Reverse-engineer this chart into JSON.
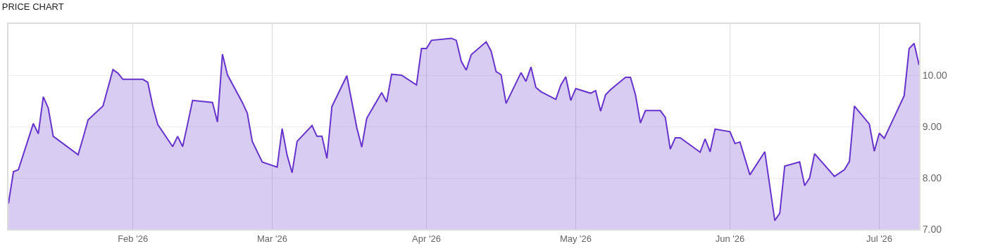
{
  "chart_data": {
    "type": "area",
    "title": "PRICE CHART",
    "x": [
      "2026-01-07",
      "2026-01-08",
      "2026-01-09",
      "2026-01-12",
      "2026-01-13",
      "2026-01-14",
      "2026-01-15",
      "2026-01-16",
      "2026-01-21",
      "2026-01-22",
      "2026-01-23",
      "2026-01-26",
      "2026-01-28",
      "2026-01-29",
      "2026-01-30",
      "2026-02-03",
      "2026-02-04",
      "2026-02-05",
      "2026-02-06",
      "2026-02-09",
      "2026-02-10",
      "2026-02-11",
      "2026-02-12",
      "2026-02-13",
      "2026-02-17",
      "2026-02-18",
      "2026-02-19",
      "2026-02-20",
      "2026-02-23",
      "2026-02-24",
      "2026-02-25",
      "2026-02-27",
      "2026-03-02",
      "2026-03-03",
      "2026-03-04",
      "2026-03-05",
      "2026-03-06",
      "2026-03-09",
      "2026-03-10",
      "2026-03-11",
      "2026-03-12",
      "2026-03-13",
      "2026-03-16",
      "2026-03-18",
      "2026-03-19",
      "2026-03-20",
      "2026-03-23",
      "2026-03-24",
      "2026-03-25",
      "2026-03-27",
      "2026-03-30",
      "2026-03-31",
      "2026-04-01",
      "2026-04-02",
      "2026-04-06",
      "2026-04-07",
      "2026-04-08",
      "2026-04-09",
      "2026-04-10",
      "2026-04-13",
      "2026-04-14",
      "2026-04-15",
      "2026-04-16",
      "2026-04-17",
      "2026-04-20",
      "2026-04-21",
      "2026-04-22",
      "2026-04-23",
      "2026-04-24",
      "2026-04-27",
      "2026-04-28",
      "2026-04-29",
      "2026-04-30",
      "2026-05-01",
      "2026-05-04",
      "2026-05-05",
      "2026-05-06",
      "2026-05-07",
      "2026-05-08",
      "2026-05-11",
      "2026-05-12",
      "2026-05-13",
      "2026-05-14",
      "2026-05-15",
      "2026-05-18",
      "2026-05-19",
      "2026-05-20",
      "2026-05-21",
      "2026-05-22",
      "2026-05-26",
      "2026-05-27",
      "2026-05-28",
      "2026-05-29",
      "2026-06-01",
      "2026-06-02",
      "2026-06-03",
      "2026-06-05",
      "2026-06-08",
      "2026-06-10",
      "2026-06-11",
      "2026-06-12",
      "2026-06-15",
      "2026-06-16",
      "2026-06-17",
      "2026-06-18",
      "2026-06-22",
      "2026-06-24",
      "2026-06-25",
      "2026-06-26",
      "2026-06-29",
      "2026-06-30",
      "2026-07-01",
      "2026-07-02",
      "2026-07-06",
      "2026-07-07",
      "2026-07-08",
      "2026-07-09"
    ],
    "series": [
      {
        "color": "#6633cc",
        "values": [
          7.5,
          8.12,
          8.16,
          9.06,
          8.86,
          9.58,
          9.36,
          8.81,
          8.45,
          8.78,
          9.13,
          9.4,
          10.11,
          10.04,
          9.92,
          9.92,
          9.86,
          9.4,
          9.04,
          8.61,
          8.81,
          8.61,
          9.05,
          9.51,
          9.47,
          9.09,
          10.41,
          10.01,
          9.47,
          9.26,
          8.71,
          8.31,
          8.21,
          8.96,
          8.44,
          8.1,
          8.71,
          9.02,
          8.81,
          8.81,
          8.38,
          9.39,
          9.99,
          8.98,
          8.6,
          9.16,
          9.66,
          9.48,
          10.02,
          10.0,
          9.81,
          10.52,
          10.52,
          10.68,
          10.72,
          10.68,
          10.27,
          10.1,
          10.4,
          10.65,
          10.47,
          10.07,
          10.01,
          9.45,
          10.05,
          9.88,
          10.16,
          9.76,
          9.68,
          9.53,
          9.81,
          9.97,
          9.51,
          9.74,
          9.65,
          9.7,
          9.3,
          9.62,
          9.72,
          9.96,
          9.96,
          9.62,
          9.07,
          9.31,
          9.31,
          9.18,
          8.56,
          8.78,
          8.78,
          8.5,
          8.76,
          8.51,
          8.95,
          8.9,
          8.67,
          8.7,
          8.06,
          8.51,
          7.17,
          7.31,
          8.23,
          8.31,
          7.85,
          8.0,
          8.47,
          8.03,
          8.16,
          8.32,
          9.4,
          9.05,
          8.52,
          8.87,
          8.77,
          9.6,
          10.52,
          10.62,
          10.2
        ]
      }
    ],
    "xlim": [
      "2026-01-07",
      "2026-07-09"
    ],
    "xticks": [
      {
        "value": "2026-02-01",
        "label": "Feb '26"
      },
      {
        "value": "2026-03-01",
        "label": "Mar '26"
      },
      {
        "value": "2026-04-01",
        "label": "Apr '26"
      },
      {
        "value": "2026-05-01",
        "label": "May '26"
      },
      {
        "value": "2026-06-01",
        "label": "Jun '26"
      },
      {
        "value": "2026-07-01",
        "label": "Jul '26"
      }
    ],
    "ylim": [
      7,
      11
    ],
    "yticks": [
      {
        "value": 7,
        "label": "7.00"
      },
      {
        "value": 8,
        "label": "8.00"
      },
      {
        "value": 9,
        "label": "9.00"
      },
      {
        "value": 10,
        "label": "10.00"
      }
    ],
    "grid": true
  }
}
